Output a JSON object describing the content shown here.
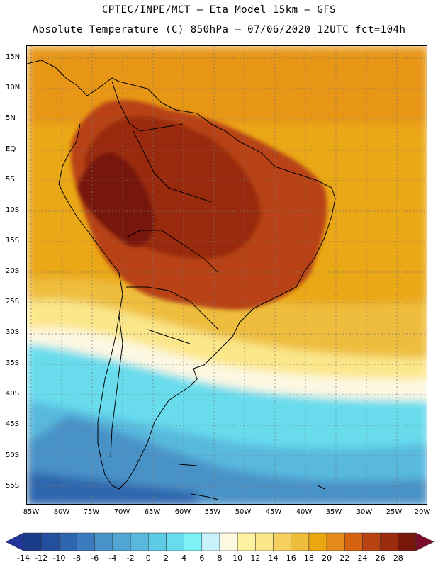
{
  "header": {
    "line1": "CPTEC/INPE/MCT —  Eta Model 15km — GFS",
    "line2": "Absolute Temperature (C) 850hPa — 07/06/2020 12UTC fct=104h"
  },
  "map": {
    "lat_labels": [
      "15N",
      "10N",
      "5N",
      "EQ",
      "5S",
      "10S",
      "15S",
      "20S",
      "25S",
      "30S",
      "35S",
      "40S",
      "45S",
      "50S",
      "55S"
    ],
    "lon_labels": [
      "85W",
      "80W",
      "75W",
      "70W",
      "65W",
      "60W",
      "55W",
      "50W",
      "45W",
      "40W",
      "35W",
      "30W",
      "25W",
      "20W"
    ],
    "lat_range": [
      -58,
      16.5
    ],
    "lon_range": [
      -86,
      -20
    ]
  },
  "colorbar": {
    "labels": [
      "-14",
      "-12",
      "-10",
      "-8",
      "-6",
      "-4",
      "-2",
      "0",
      "2",
      "4",
      "6",
      "8",
      "10",
      "12",
      "14",
      "16",
      "18",
      "20",
      "22",
      "24",
      "26",
      "28"
    ],
    "colors": [
      "#1a3a8a",
      "#244f9e",
      "#2d66ae",
      "#3b7bbd",
      "#4892c8",
      "#52a6d2",
      "#58b9dd",
      "#5dcae6",
      "#67dced",
      "#7cf1f6",
      "#c9f3fb",
      "#fdf8e2",
      "#fdf2a0",
      "#fbe78a",
      "#f5d060",
      "#eebd3c",
      "#eaa712",
      "#e48a1a",
      "#d66310",
      "#b84212",
      "#9a2b0c",
      "#77170a"
    ],
    "under_color": "#22359a",
    "over_color": "#7d0b2c"
  }
}
